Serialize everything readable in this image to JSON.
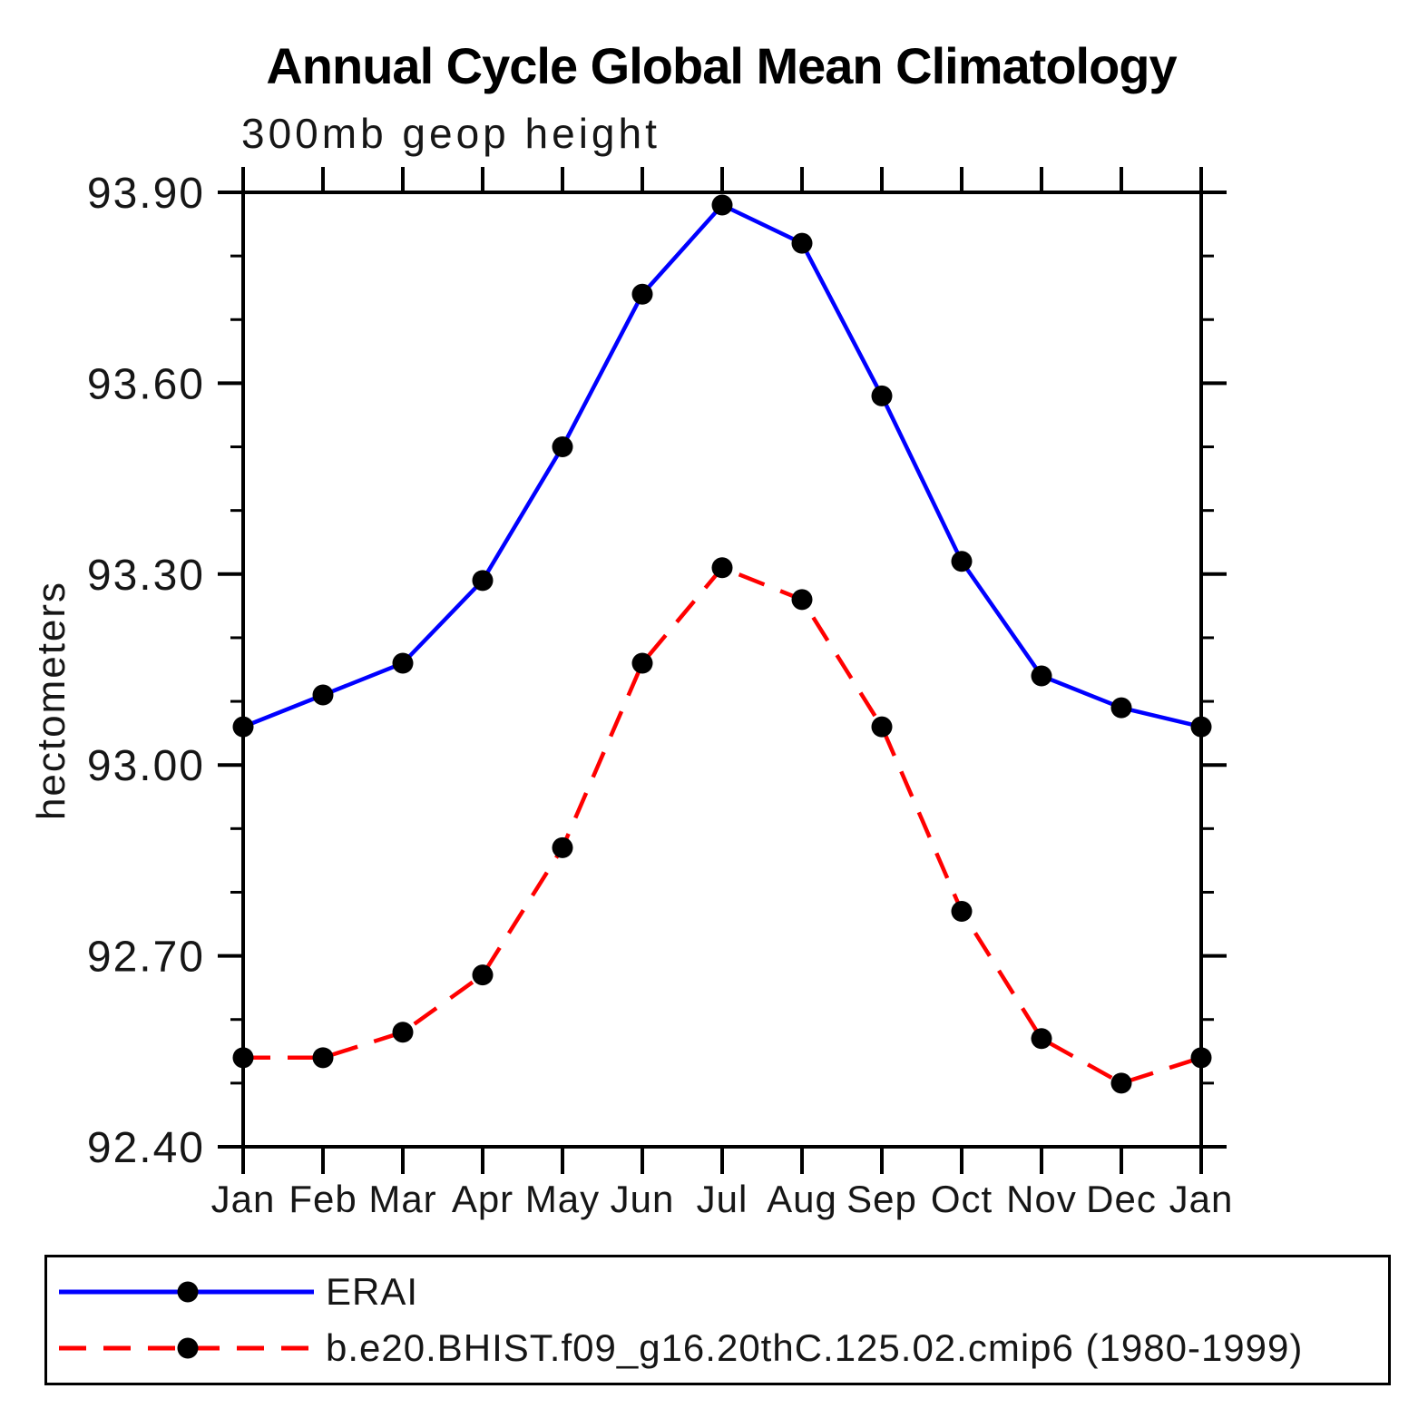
{
  "page": {
    "background": "#ffffff"
  },
  "chart_data": {
    "type": "line",
    "title": "Annual Cycle Global Mean Climatology",
    "subtitle": "300mb geop height",
    "xlabel": "",
    "ylabel": "hectometers",
    "categories": [
      "Jan",
      "Feb",
      "Mar",
      "Apr",
      "May",
      "Jun",
      "Jul",
      "Aug",
      "Sep",
      "Oct",
      "Nov",
      "Dec",
      "Jan"
    ],
    "ylim": [
      92.4,
      93.9
    ],
    "y_major_step": 0.3,
    "y_minor_step": 0.1,
    "y_tick_labels": [
      "93.90",
      "93.60",
      "93.30",
      "93.00",
      "92.70",
      "92.40"
    ],
    "grid": false,
    "legend_position": "bottom-box",
    "axis_color": "#000000",
    "series": [
      {
        "name": "ERAI",
        "color": "#0000ff",
        "style": "solid",
        "marker": "filled-circle",
        "marker_color": "#000000",
        "values": [
          93.06,
          93.11,
          93.16,
          93.29,
          93.5,
          93.74,
          93.88,
          93.82,
          93.58,
          93.32,
          93.14,
          93.09,
          93.06
        ]
      },
      {
        "name": "b.e20.BHIST.f09_g16.20thC.125.02.cmip6 (1980-1999)",
        "color": "#ff0000",
        "style": "dashed",
        "marker": "filled-circle",
        "marker_color": "#000000",
        "values": [
          92.54,
          92.54,
          92.58,
          92.67,
          92.87,
          93.16,
          93.31,
          93.26,
          93.06,
          92.77,
          92.57,
          92.5,
          92.54
        ]
      }
    ]
  }
}
